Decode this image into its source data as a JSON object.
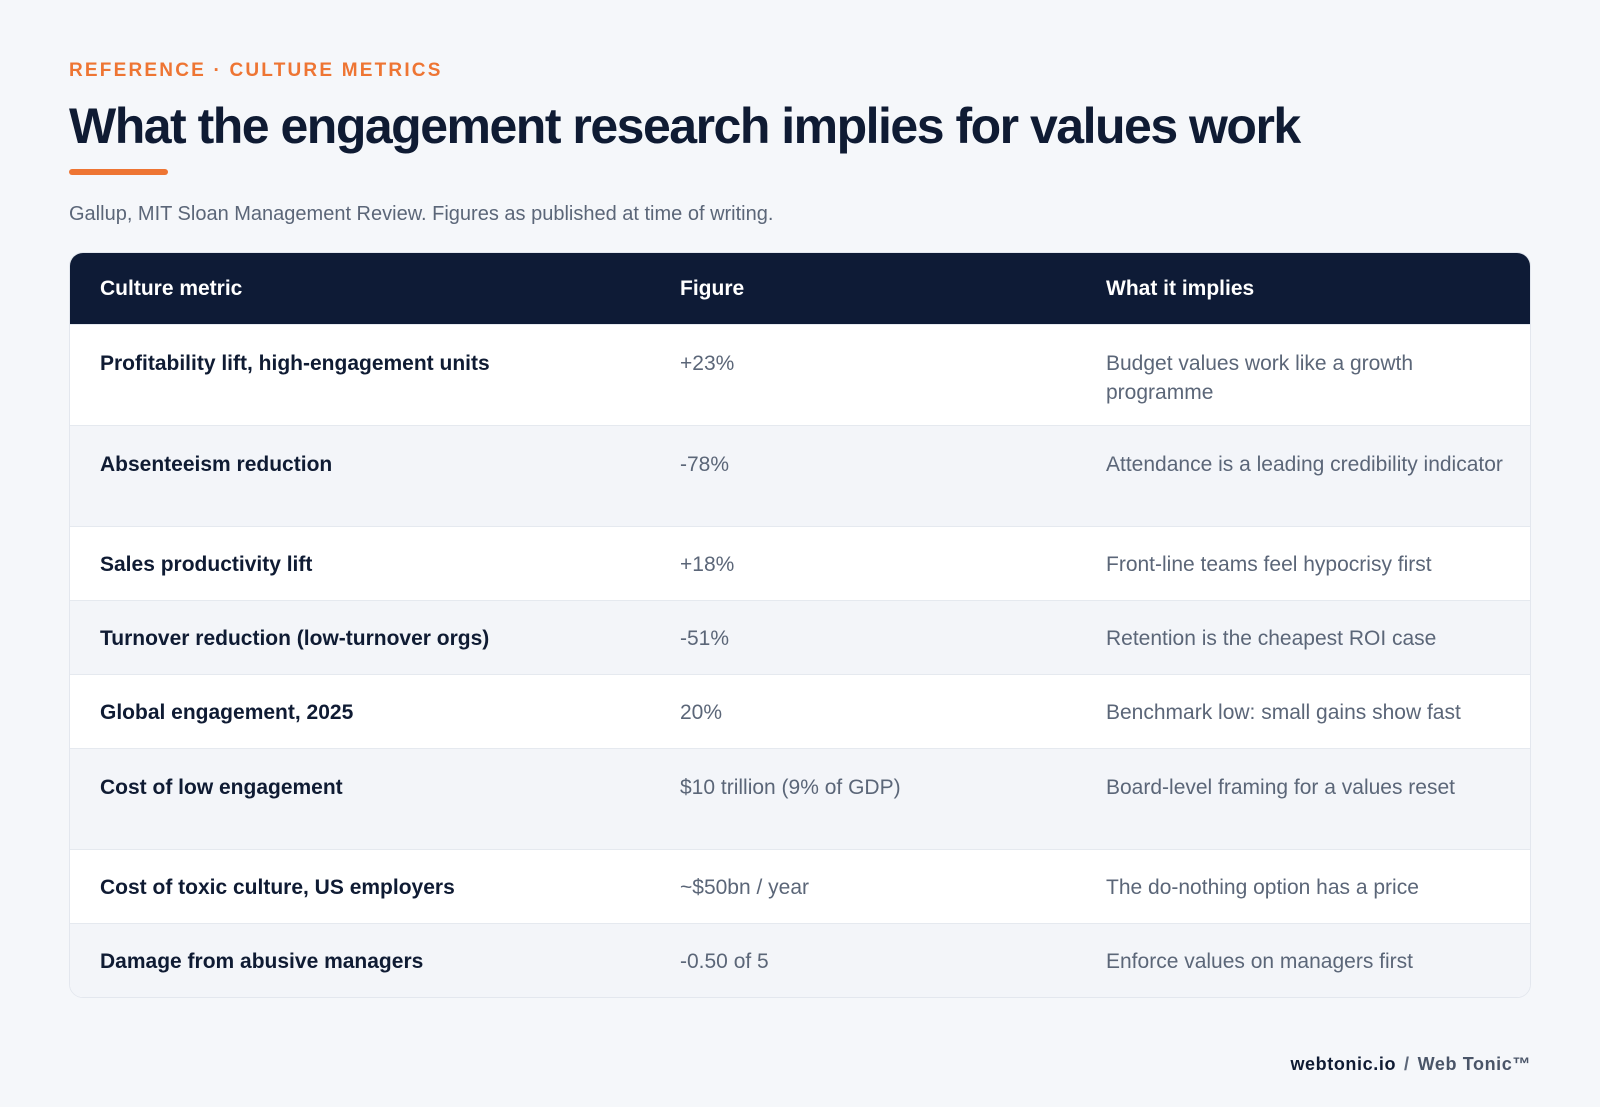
{
  "header": {
    "eyebrow": "REFERENCE · CULTURE METRICS",
    "title": "What the engagement research implies for values work",
    "subtitle": "Gallup, MIT Sloan Management Review. Figures as published at time of writing.",
    "accent_color": "#ee7533"
  },
  "table": {
    "columns": [
      "Culture metric",
      "Figure",
      "What it implies"
    ],
    "header_color": "#0e1b36",
    "rows": [
      {
        "metric": "Profitability lift, high-engagement units",
        "figure": "+23%",
        "implies": "Budget values work like a growth programme"
      },
      {
        "metric": "Absenteeism reduction",
        "figure": "-78%",
        "implies": "Attendance is a leading credibility indicator"
      },
      {
        "metric": "Sales productivity lift",
        "figure": "+18%",
        "implies": "Front-line teams feel hypocrisy first"
      },
      {
        "metric": "Turnover reduction (low-turnover orgs)",
        "figure": "-51%",
        "implies": "Retention is the cheapest ROI case"
      },
      {
        "metric": "Global engagement, 2025",
        "figure": "20%",
        "implies": "Benchmark low: small gains show fast"
      },
      {
        "metric": "Cost of low engagement",
        "figure": "$10 trillion (9% of GDP)",
        "implies": "Board-level framing for a values reset"
      },
      {
        "metric": "Cost of toxic culture, US employers",
        "figure": "~$50bn / year",
        "implies": "The do-nothing option has a price"
      },
      {
        "metric": "Damage from abusive managers",
        "figure": "-0.50 of 5",
        "implies": "Enforce values on managers first"
      }
    ]
  },
  "footer": {
    "site": "webtonic.io",
    "separator": "/",
    "brand": "Web Tonic™"
  }
}
